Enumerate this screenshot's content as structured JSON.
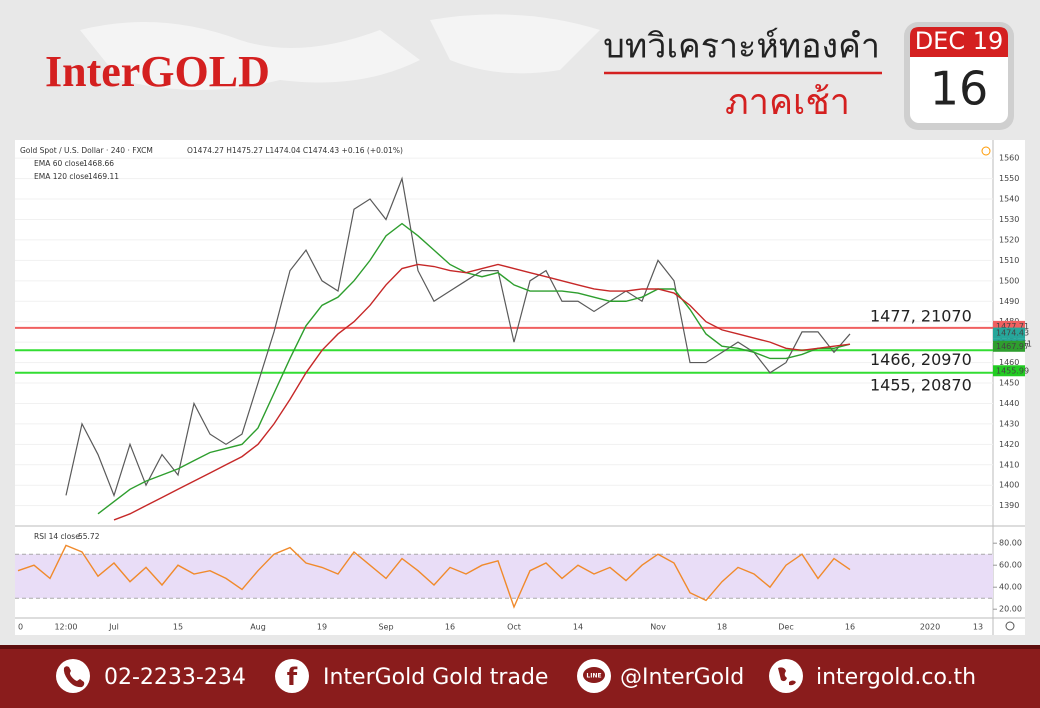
{
  "header": {
    "logo": "InterGOLD",
    "title": "บทวิเคราะห์ทองคำ",
    "subtitle": "ภาคเช้า"
  },
  "calendar": {
    "month": "DEC 19",
    "day": "16"
  },
  "chart_data": [
    {
      "type": "line",
      "title": "Gold Spot / U.S. Dollar · 240 · FXCM",
      "ohlc": "O1474.27 H1475.27 L1474.04 C1474.43 +0.16 (+0.01%)",
      "categories": [
        "0",
        null,
        null,
        "12:00",
        null,
        null,
        "Jul",
        null,
        null,
        null,
        "15",
        null,
        null,
        null,
        null,
        "Aug",
        null,
        null,
        null,
        "19",
        null,
        null,
        null,
        "Sep",
        null,
        null,
        null,
        "16",
        null,
        null,
        null,
        "Oct",
        null,
        null,
        null,
        "14",
        null,
        null,
        null,
        null,
        "Nov",
        null,
        null,
        null,
        "18",
        null,
        null,
        null,
        "Dec",
        null,
        null,
        null,
        "16",
        null,
        null,
        null,
        null,
        "2020",
        null,
        null,
        "13"
      ],
      "series": [
        {
          "color": "#5a5a5a",
          "values": [
            null,
            null,
            null,
            1395,
            1430,
            1415,
            1395,
            1420,
            1400,
            1415,
            1405,
            1440,
            1425,
            1420,
            1425,
            1450,
            1475,
            1505,
            1515,
            1500,
            1495,
            1535,
            1540,
            1530,
            1550,
            1505,
            1490,
            1495,
            1500,
            1505,
            1505,
            1470,
            1500,
            1505,
            1490,
            1490,
            1485,
            1490,
            1495,
            1490,
            1510,
            1500,
            1460,
            1460,
            1465,
            1470,
            1465,
            1455,
            1460,
            1475,
            1475,
            1465,
            1474,
            null,
            null,
            null,
            null,
            null,
            null,
            null,
            null
          ]
        },
        {
          "name": "EMA 60 close",
          "last_value": 1468.66,
          "color": "#2e9e2e",
          "values": [
            null,
            null,
            null,
            null,
            null,
            1386,
            1392,
            1398,
            1402,
            1405,
            1408,
            1412,
            1416,
            1418,
            1420,
            1428,
            1445,
            1462,
            1478,
            1488,
            1492,
            1500,
            1510,
            1522,
            1528,
            1522,
            1515,
            1508,
            1504,
            1502,
            1504,
            1498,
            1495,
            1495,
            1495,
            1494,
            1492,
            1490,
            1490,
            1492,
            1496,
            1496,
            1486,
            1474,
            1468,
            1467,
            1465,
            1462,
            1462,
            1464,
            1467,
            1467,
            1469,
            null,
            null,
            null,
            null,
            null,
            null,
            null,
            null
          ]
        },
        {
          "name": "EMA 120 close",
          "last_value": 1469.11,
          "color": "#c62828",
          "values": [
            null,
            null,
            null,
            null,
            null,
            null,
            1383,
            1386,
            1390,
            1394,
            1398,
            1402,
            1406,
            1410,
            1414,
            1420,
            1430,
            1442,
            1455,
            1466,
            1474,
            1480,
            1488,
            1498,
            1506,
            1508,
            1507,
            1505,
            1504,
            1506,
            1508,
            1506,
            1504,
            1502,
            1500,
            1498,
            1496,
            1495,
            1495,
            1496,
            1496,
            1494,
            1488,
            1480,
            1476,
            1474,
            1472,
            1470,
            1467,
            1466,
            1467,
            1468,
            1469,
            null,
            null,
            null,
            null,
            null,
            null,
            null,
            null
          ]
        }
      ],
      "ylim": [
        1382,
        1564
      ],
      "yticks": [
        1390,
        1400,
        1410,
        1420,
        1430,
        1440,
        1450,
        1460,
        1470,
        1480,
        1490,
        1500,
        1510,
        1520,
        1530,
        1540,
        1550,
        1560
      ],
      "grid": true,
      "levels": [
        {
          "value": 1477,
          "label": "1477, 21070",
          "color": "#f06060"
        },
        {
          "value": 1466,
          "label": "1466, 20970",
          "color": "#33dd33"
        },
        {
          "value": 1455,
          "label": "1455, 20870",
          "color": "#33dd33"
        }
      ],
      "price_tags": [
        {
          "value": 1477.71,
          "color": "#f06060"
        },
        {
          "value": 1474.43,
          "color": "#26a69a"
        },
        {
          "value": 1467.97,
          "color": "#2e9e2e"
        },
        {
          "value": 1455.99,
          "color": "#22cc22"
        }
      ],
      "countdown": "02:06:51"
    },
    {
      "type": "line",
      "series": [
        {
          "name": "RSI 14 close",
          "last_value": 55.72,
          "color": "#f08a2c",
          "values": [
            55,
            60,
            48,
            78,
            72,
            50,
            62,
            45,
            58,
            42,
            60,
            52,
            55,
            48,
            38,
            55,
            70,
            76,
            62,
            58,
            52,
            72,
            60,
            48,
            66,
            55,
            42,
            58,
            52,
            60,
            64,
            22,
            55,
            62,
            48,
            60,
            52,
            58,
            46,
            60,
            70,
            62,
            35,
            28,
            45,
            58,
            52,
            40,
            60,
            70,
            48,
            66,
            56,
            null,
            null,
            null,
            null,
            null,
            null,
            null,
            null
          ]
        }
      ],
      "ylim": [
        12,
        92
      ],
      "yticks": [
        {
          "value": 20,
          "label": "20.00"
        },
        {
          "value": 40,
          "label": "40.00"
        },
        {
          "value": 60,
          "label": "60.00"
        },
        {
          "value": 80,
          "label": "80.00"
        }
      ],
      "band": [
        30,
        70
      ],
      "band_color": "#e9ddf7"
    }
  ],
  "footer": {
    "phone": "02-2233-234",
    "facebook": "InterGold Gold trade",
    "line": "@InterGold",
    "website": "intergold.co.th"
  }
}
